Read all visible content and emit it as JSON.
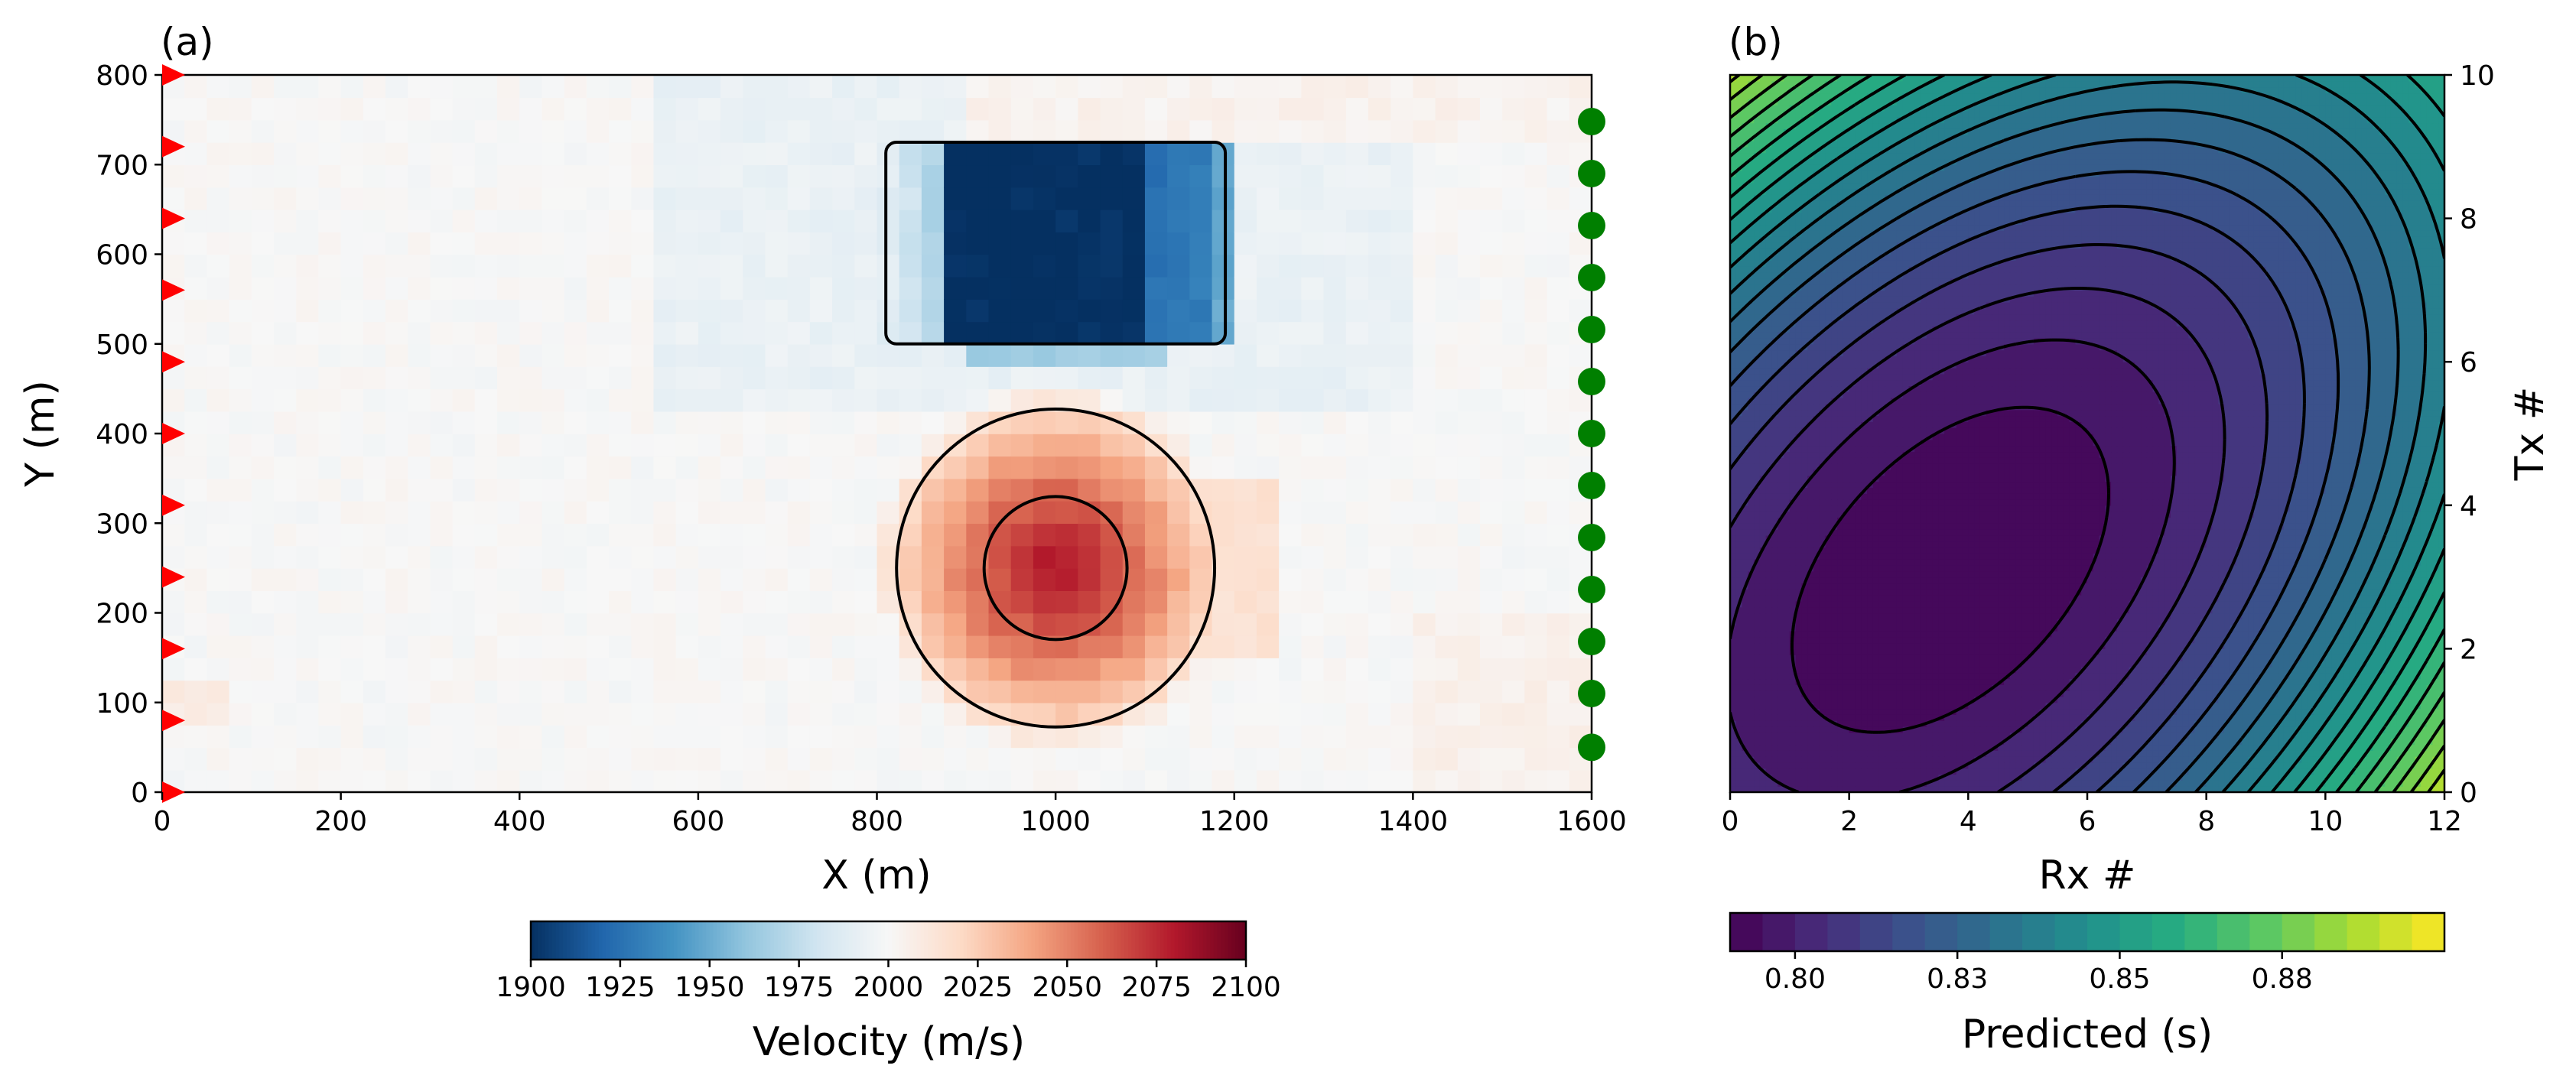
{
  "chart_data": [
    {
      "type": "heatmap",
      "panel_label": "(a)",
      "xlabel": "X (m)",
      "ylabel": "Y (m)",
      "xlim": [
        0,
        1600
      ],
      "ylim": [
        0,
        800
      ],
      "xticks": [
        "0",
        "200",
        "400",
        "600",
        "800",
        "1000",
        "1200",
        "1400",
        "1600"
      ],
      "yticks": [
        "0",
        "100",
        "200",
        "300",
        "400",
        "500",
        "600",
        "700",
        "800"
      ],
      "background_velocity": 2000,
      "anomalies": [
        {
          "kind": "low-velocity rectangle",
          "x_range": [
            810,
            1190
          ],
          "y_range": [
            500,
            725
          ],
          "min_value": 1900
        },
        {
          "kind": "high-velocity circle",
          "center": [
            1000,
            250
          ],
          "radius": 178,
          "max_value": 2080
        }
      ],
      "outlines": [
        {
          "shape": "rectangle",
          "x_range": [
            810,
            1190
          ],
          "y_range": [
            500,
            725
          ]
        },
        {
          "shape": "circle",
          "center": [
            1000,
            250
          ],
          "radius": 178
        },
        {
          "shape": "circle",
          "center": [
            1000,
            250
          ],
          "radius": 80
        }
      ],
      "sources": {
        "marker": "red-triangle",
        "x": 0,
        "y": [
          0,
          80,
          160,
          240,
          320,
          400,
          480,
          560,
          640,
          720,
          800
        ]
      },
      "receivers": {
        "marker": "green-circle",
        "x": 1600,
        "y": [
          50,
          110,
          168,
          226,
          284,
          342,
          400,
          458,
          516,
          574,
          632,
          690,
          748
        ]
      },
      "colorbar": {
        "label": "Velocity (m/s)",
        "colormap": "RdBu_r",
        "range": [
          1900,
          2100
        ],
        "ticks": [
          "1900",
          "1925",
          "1950",
          "1975",
          "2000",
          "2025",
          "2050",
          "2075",
          "2100"
        ]
      }
    },
    {
      "type": "contour",
      "panel_label": "(b)",
      "xlabel": "Rx #",
      "ylabel": "Tx #",
      "xlim": [
        0,
        12
      ],
      "ylim": [
        0,
        10
      ],
      "xticks": [
        "0",
        "2",
        "4",
        "6",
        "8",
        "10",
        "12"
      ],
      "yticks": [
        "0",
        "2",
        "4",
        "6",
        "8",
        "10"
      ],
      "minimum": {
        "rx": 3.7,
        "tx": 3.1,
        "value": 0.79
      },
      "colorbar": {
        "label": "Predicted (s)",
        "colormap": "viridis",
        "range": [
          0.79,
          0.9
        ],
        "ticks": [
          "0.80",
          "0.83",
          "0.85",
          "0.88"
        ],
        "tick_values": [
          0.8,
          0.825,
          0.85,
          0.875
        ]
      }
    }
  ]
}
